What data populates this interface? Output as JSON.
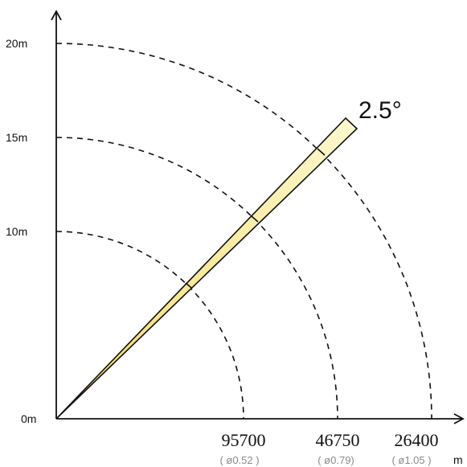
{
  "colors": {
    "beam_fill": "#fbf3b6",
    "beam_fill_inner": "#f6e88a",
    "line": "#111111",
    "caption": "#8a8a8a"
  },
  "beam_angle": "2.5°",
  "y_axis": {
    "labels": [
      {
        "text": "0m",
        "value_m": 0
      },
      {
        "text": "10m",
        "value_m": 10
      },
      {
        "text": "15m",
        "value_m": 15
      },
      {
        "text": "20m",
        "value_m": 20
      }
    ]
  },
  "rings": [
    {
      "distance_m": 10,
      "lux": "95700",
      "diameter": "( ø0.52 )"
    },
    {
      "distance_m": 15,
      "lux": "46750",
      "diameter": "( ø0.79)"
    },
    {
      "distance_m": 20,
      "lux": "26400",
      "diameter": "( ø1.05 )"
    }
  ],
  "unit": "m"
}
